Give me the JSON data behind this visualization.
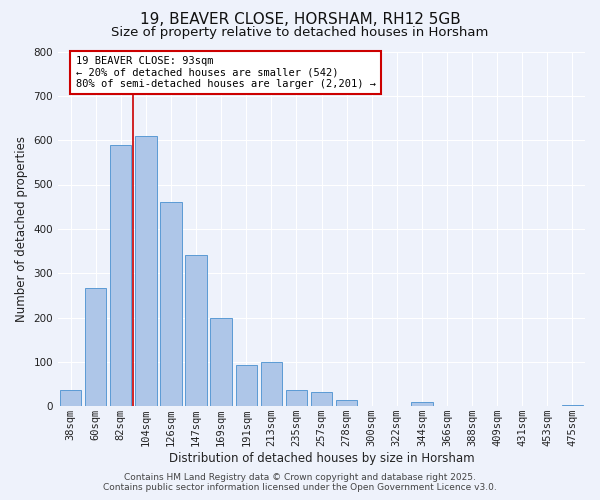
{
  "title": "19, BEAVER CLOSE, HORSHAM, RH12 5GB",
  "subtitle": "Size of property relative to detached houses in Horsham",
  "xlabel": "Distribution of detached houses by size in Horsham",
  "ylabel": "Number of detached properties",
  "bar_labels": [
    "38sqm",
    "60sqm",
    "82sqm",
    "104sqm",
    "126sqm",
    "147sqm",
    "169sqm",
    "191sqm",
    "213sqm",
    "235sqm",
    "257sqm",
    "278sqm",
    "300sqm",
    "322sqm",
    "344sqm",
    "366sqm",
    "388sqm",
    "409sqm",
    "431sqm",
    "453sqm",
    "475sqm"
  ],
  "bar_heights": [
    37,
    267,
    590,
    610,
    460,
    340,
    200,
    93,
    100,
    37,
    32,
    13,
    0,
    0,
    10,
    0,
    0,
    0,
    0,
    0,
    2
  ],
  "bar_color": "#aec6e8",
  "bar_edge_color": "#5b9bd5",
  "vline_x_idx": 2,
  "vline_color": "#cc0000",
  "annotation_title": "19 BEAVER CLOSE: 93sqm",
  "annotation_line1": "← 20% of detached houses are smaller (542)",
  "annotation_line2": "80% of semi-detached houses are larger (2,201) →",
  "annotation_box_color": "#ffffff",
  "annotation_box_edge": "#cc0000",
  "ylim": [
    0,
    800
  ],
  "yticks": [
    0,
    100,
    200,
    300,
    400,
    500,
    600,
    700,
    800
  ],
  "footer1": "Contains HM Land Registry data © Crown copyright and database right 2025.",
  "footer2": "Contains public sector information licensed under the Open Government Licence v3.0.",
  "bg_color": "#eef2fb",
  "grid_color": "#ffffff",
  "title_fontsize": 11,
  "subtitle_fontsize": 9.5,
  "axis_label_fontsize": 8.5,
  "tick_fontsize": 7.5,
  "annotation_fontsize": 7.5,
  "footer_fontsize": 6.5
}
